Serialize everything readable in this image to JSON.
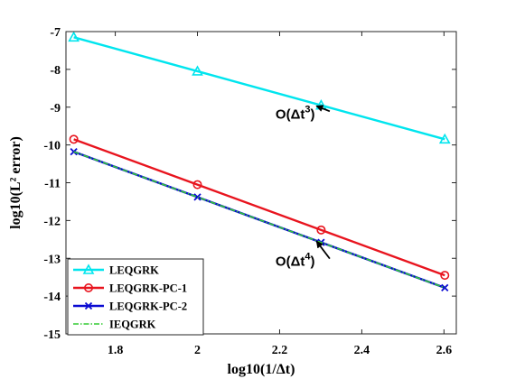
{
  "chart_data": {
    "type": "line",
    "title": "",
    "xlabel": "log10(1/Δt)",
    "ylabel": "log10(L² error)",
    "xlim": [
      1.68,
      2.63
    ],
    "ylim": [
      -15,
      -7
    ],
    "x_ticks": [
      1.8,
      2.0,
      2.2,
      2.4,
      2.6
    ],
    "y_ticks": [
      -15,
      -14,
      -13,
      -12,
      -11,
      -10,
      -9,
      -8,
      -7
    ],
    "x_tick_labels": [
      "1.8",
      "2",
      "2.2",
      "2.4",
      "2.6"
    ],
    "y_tick_labels": [
      "-15",
      "-14",
      "-13",
      "-12",
      "-11",
      "-10",
      "-9",
      "-8",
      "-7"
    ],
    "grid": false,
    "legend_position": "bottom-left",
    "series": [
      {
        "name": "LEQGRK",
        "color": "#00e5ee",
        "marker": "triangle",
        "dash": "solid",
        "x": [
          1.699,
          2.0,
          2.301,
          2.602
        ],
        "y": [
          -7.15,
          -8.05,
          -8.95,
          -9.85
        ]
      },
      {
        "name": "LEQGRK-PC-1",
        "color": "#e8141e",
        "marker": "circle",
        "dash": "solid",
        "x": [
          1.699,
          2.0,
          2.301,
          2.602
        ],
        "y": [
          -9.85,
          -11.05,
          -12.25,
          -13.45
        ]
      },
      {
        "name": "LEQGRK-PC-2",
        "color": "#0a0ad2",
        "marker": "x",
        "dash": "solid",
        "x": [
          1.699,
          2.0,
          2.301,
          2.602
        ],
        "y": [
          -10.18,
          -11.38,
          -12.58,
          -13.78
        ]
      },
      {
        "name": "IEQGRK",
        "color": "#33cc33",
        "marker": "none",
        "dash": "dashdot",
        "x": [
          1.699,
          2.0,
          2.301,
          2.602
        ],
        "y": [
          -10.18,
          -11.38,
          -12.58,
          -13.78
        ]
      }
    ],
    "annotations": [
      {
        "label": "O(Δt",
        "superscript": "3",
        "closing": ")",
        "text_x": 2.19,
        "text_y": -9.3,
        "arrow_to_x": 2.29,
        "arrow_to_y": -8.97
      },
      {
        "label": "O(Δt",
        "superscript": "4",
        "closing": ")",
        "text_x": 2.19,
        "text_y": -13.2,
        "arrow_to_x": 2.29,
        "arrow_to_y": -12.55
      }
    ]
  }
}
